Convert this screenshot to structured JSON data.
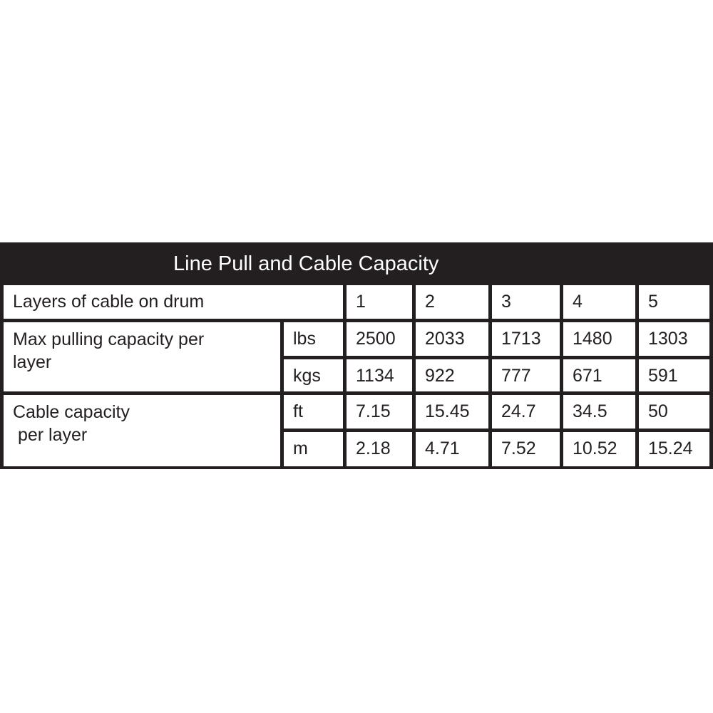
{
  "title": "Line Pull and Cable Capacity",
  "header_row": {
    "label": "Layers of cable on drum",
    "layers": [
      "1",
      "2",
      "3",
      "4",
      "5"
    ]
  },
  "pulling": {
    "label": "Max pulling capacity per layer",
    "rows": [
      {
        "unit": "lbs",
        "values": [
          "2500",
          "2033",
          "1713",
          "1480",
          "1303"
        ]
      },
      {
        "unit": "kgs",
        "values": [
          "1134",
          "922",
          "777",
          "671",
          "591"
        ]
      }
    ]
  },
  "cable": {
    "label": "Cable capacity\n per layer",
    "rows": [
      {
        "unit": "ft",
        "values": [
          "7.15",
          "15.45",
          "24.7",
          "34.5",
          "50"
        ]
      },
      {
        "unit": "m",
        "values": [
          "2.18",
          "4.71",
          "7.52",
          "10.52",
          "15.24"
        ]
      }
    ]
  },
  "colors": {
    "border": "#231f20",
    "header_bg": "#231f20",
    "header_text": "#ffffff"
  }
}
